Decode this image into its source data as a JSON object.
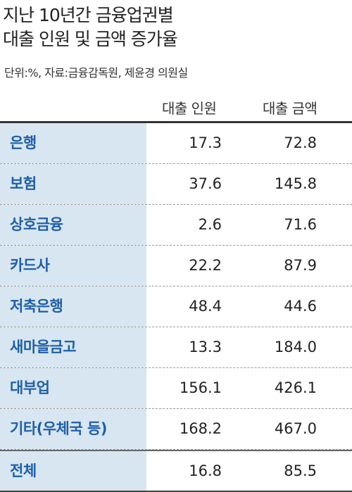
{
  "header": {
    "title_lines": [
      "지난 10년간 금융업권별",
      "대출 인원 및 금액 증가율"
    ],
    "subtitle": "단위:%, 자료:금융감독원, 제윤경 의원실"
  },
  "table": {
    "columns": [
      "대출 인원",
      "대출 금액"
    ],
    "rows": [
      [
        "은행",
        "17.3",
        "72.8"
      ],
      [
        "보험",
        "37.6",
        "145.8"
      ],
      [
        "상호금융",
        "2.6",
        "71.6"
      ],
      [
        "카드사",
        "22.2",
        "87.9"
      ],
      [
        "저축은행",
        "48.4",
        "44.6"
      ],
      [
        "새마을금고",
        "13.3",
        "184.0"
      ],
      [
        "대부업",
        "156.1",
        "426.1"
      ],
      [
        "기타(우체국 등)",
        "168.2",
        "467.0"
      ],
      [
        "전체",
        "16.8",
        "85.5"
      ]
    ]
  }
}
